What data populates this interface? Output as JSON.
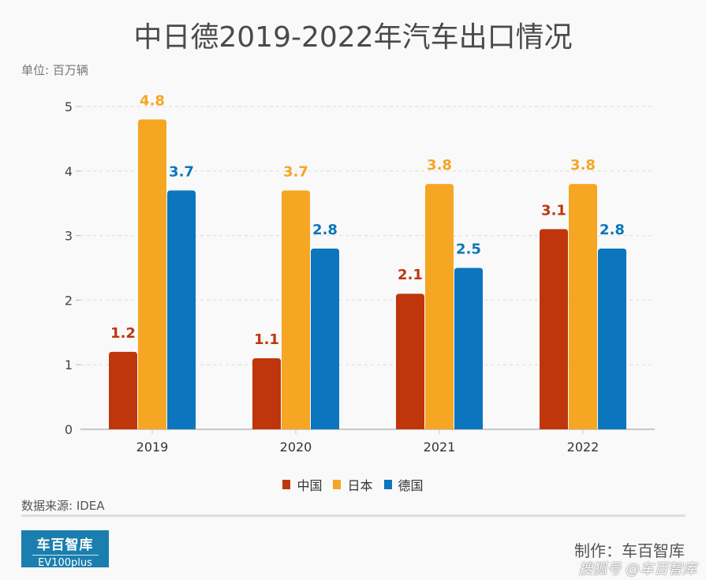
{
  "title": "中日德2019-2022年汽车出口情况",
  "unit_label": "单位: 百万辆",
  "source_label": "数据来源: IDEA",
  "maker_label": "制作：车百智库",
  "watermark": "搜狐号 @车百智库",
  "logo": {
    "cn": "车百智库",
    "en": "EV100plus"
  },
  "legend": [
    {
      "name": "中国",
      "color": "#bf360c"
    },
    {
      "name": "日本",
      "color": "#f5a623"
    },
    {
      "name": "德国",
      "color": "#0b76bd"
    }
  ],
  "chart_data": {
    "type": "bar",
    "title": "中日德2019-2022年汽车出口情况",
    "xlabel": "",
    "ylabel": "单位: 百万辆",
    "categories": [
      "2019",
      "2020",
      "2021",
      "2022"
    ],
    "series": [
      {
        "name": "中国",
        "color": "#bf360c",
        "values": [
          1.2,
          1.1,
          2.1,
          3.1
        ]
      },
      {
        "name": "日本",
        "color": "#f5a623",
        "values": [
          4.8,
          3.7,
          3.8,
          3.8
        ]
      },
      {
        "name": "德国",
        "color": "#0b76bd",
        "values": [
          3.7,
          2.8,
          2.5,
          2.8
        ]
      }
    ],
    "ylim": [
      0,
      5
    ],
    "yticks": [
      0,
      1,
      2,
      3,
      4,
      5
    ],
    "grid": true,
    "legend_position": "bottom-center",
    "data_labels": true
  }
}
